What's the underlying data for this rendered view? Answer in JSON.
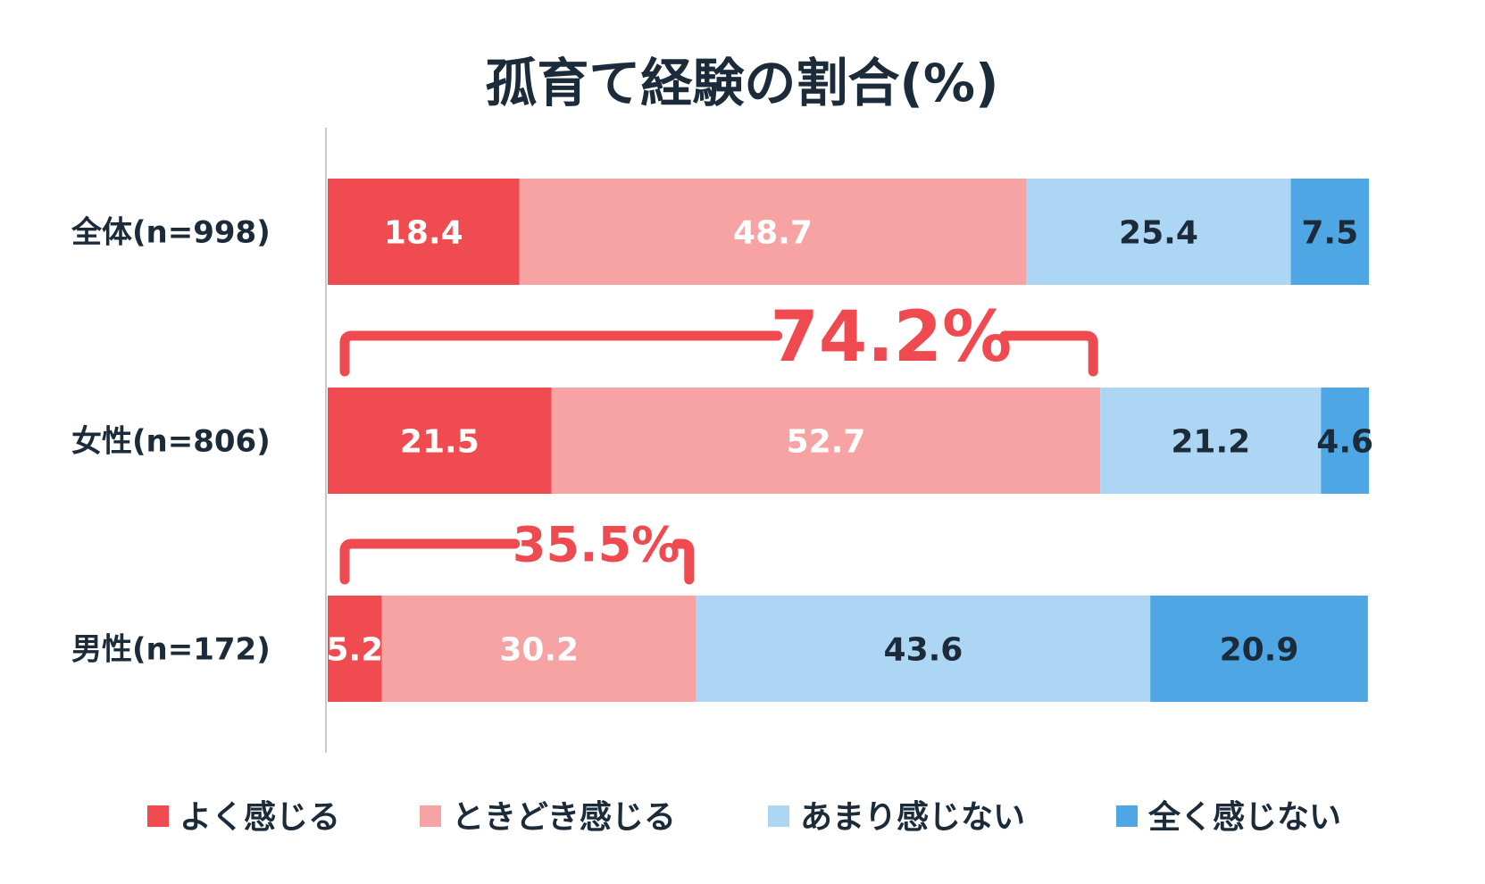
{
  "chart_data": {
    "type": "bar",
    "orientation": "horizontal",
    "stacked": true,
    "title": "孤育て経験の割合(%)",
    "categories": [
      "全体(n=998)",
      "女性(n=806)",
      "男性(n=172)"
    ],
    "series": [
      {
        "name": "よく感じる",
        "color": "#f04b50",
        "label_color": "#ffffff",
        "values": [
          18.4,
          21.5,
          5.2
        ]
      },
      {
        "name": "ときどき感じる",
        "color": "#f8a3a3",
        "label_color": "#ffffff",
        "values": [
          48.7,
          52.7,
          30.2
        ]
      },
      {
        "name": "あまり感じない",
        "color": "#acd6f3",
        "label_color": "#1b2b3a",
        "values": [
          25.4,
          21.2,
          43.6
        ]
      },
      {
        "name": "全く感じない",
        "color": "#4ea7e4",
        "label_color": "#1b2b3a",
        "values": [
          7.5,
          4.6,
          20.9
        ]
      }
    ],
    "xlim": [
      0,
      100
    ],
    "grid": false,
    "legend_position": "bottom",
    "annotations": [
      {
        "category": "女性(n=806)",
        "text": "74.2%",
        "spans_series": [
          "よく感じる",
          "ときどき感じる"
        ],
        "color": "#ef4a4f"
      },
      {
        "category": "男性(n=172)",
        "text": "35.5%",
        "spans_series": [
          "よく感じる",
          "ときどき感じる"
        ],
        "color": "#ef4a4f"
      }
    ]
  }
}
